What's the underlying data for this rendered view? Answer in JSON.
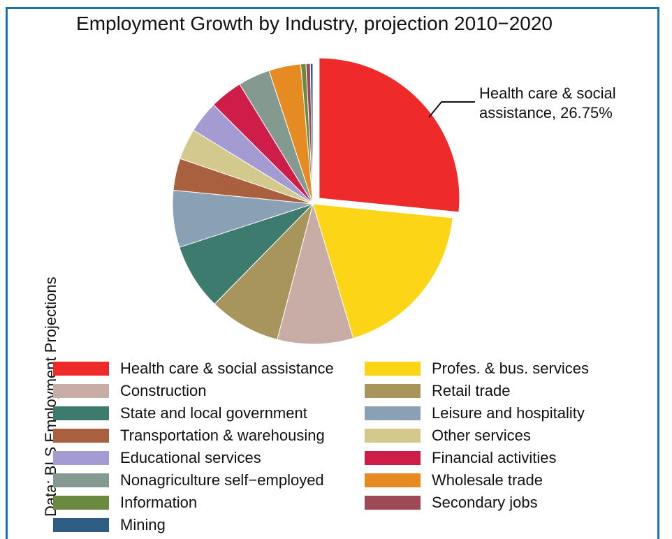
{
  "chart_data": {
    "type": "pie",
    "title": "Employment Growth by Industry, projection 2010−2020",
    "source": "Data: BLS Employment Projections",
    "callout": {
      "line1": "Health care & social",
      "line2": "assistance, 26.75%"
    },
    "slices": [
      {
        "label": "Health care & social assistance",
        "value": 26.75,
        "color": "#ee2a2a",
        "exploded": true
      },
      {
        "label": "Profes. & bus. services",
        "value": 18.9,
        "color": "#fcd517"
      },
      {
        "label": "Construction",
        "value": 8.8,
        "color": "#c8aca6"
      },
      {
        "label": "Retail trade",
        "value": 8.3,
        "color": "#a8955b"
      },
      {
        "label": "State and local government",
        "value": 7.7,
        "color": "#3e7b6f"
      },
      {
        "label": "Leisure and hospitality",
        "value": 6.6,
        "color": "#8aa0b5"
      },
      {
        "label": "Transportation & warehousing",
        "value": 3.7,
        "color": "#a9603f"
      },
      {
        "label": "Other services",
        "value": 3.6,
        "color": "#d3c98d"
      },
      {
        "label": "Educational services",
        "value": 3.7,
        "color": "#a49bd2"
      },
      {
        "label": "Financial activities",
        "value": 3.8,
        "color": "#cf1d4a"
      },
      {
        "label": "Nonagriculture self−employed",
        "value": 3.7,
        "color": "#84998f"
      },
      {
        "label": "Wholesale trade",
        "value": 3.7,
        "color": "#e68a22"
      },
      {
        "label": "Information",
        "value": 0.6,
        "color": "#6a8a40"
      },
      {
        "label": "Secondary jobs",
        "value": 0.5,
        "color": "#9c4a55"
      },
      {
        "label": "Mining",
        "value": 0.3,
        "color": "#2f5d83"
      }
    ],
    "legend": [
      {
        "label": "Health care & social assistance",
        "color": "#ee2a2a"
      },
      {
        "label": "Profes. & bus. services",
        "color": "#fcd517"
      },
      {
        "label": "Construction",
        "color": "#c8aca6"
      },
      {
        "label": "Retail trade",
        "color": "#a8955b"
      },
      {
        "label": "State and local government",
        "color": "#3e7b6f"
      },
      {
        "label": "Leisure and hospitality",
        "color": "#8aa0b5"
      },
      {
        "label": "Transportation & warehousing",
        "color": "#a9603f"
      },
      {
        "label": "Other services",
        "color": "#d3c98d"
      },
      {
        "label": "Educational services",
        "color": "#a49bd2"
      },
      {
        "label": "Financial activities",
        "color": "#cf1d4a"
      },
      {
        "label": "Nonagriculture self−employed",
        "color": "#84998f"
      },
      {
        "label": "Wholesale trade",
        "color": "#e68a22"
      },
      {
        "label": "Information",
        "color": "#6a8a40"
      },
      {
        "label": "Secondary jobs",
        "color": "#9c4a55"
      },
      {
        "label": "Mining",
        "color": "#2f5d83"
      }
    ],
    "legend_placement": "bottom",
    "frame_color": "#1a73b8"
  }
}
